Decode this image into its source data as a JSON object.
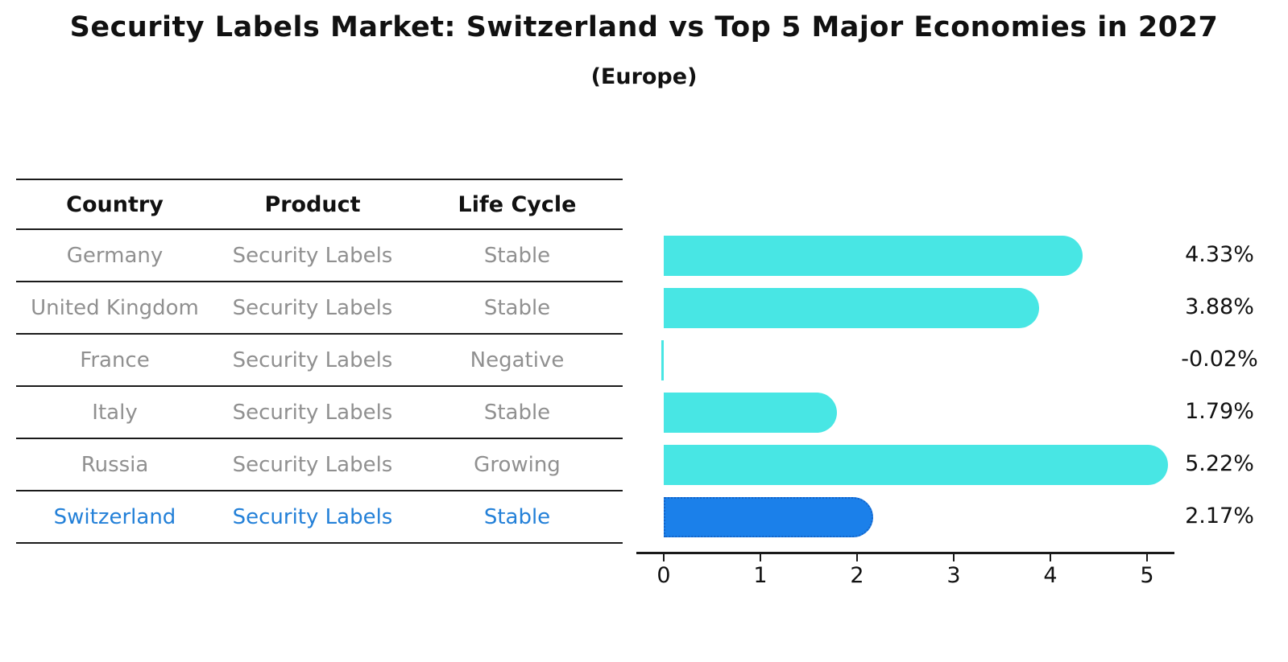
{
  "title": "Security Labels Market: Switzerland vs Top 5 Major Economies in 2027",
  "subtitle": "(Europe)",
  "table": {
    "columns": [
      "Country",
      "Product",
      "Life Cycle"
    ],
    "rows": [
      {
        "country": "Germany",
        "product": "Security Labels",
        "life_cycle": "Stable",
        "highlight": false
      },
      {
        "country": "United Kingdom",
        "product": "Security Labels",
        "life_cycle": "Stable",
        "highlight": false
      },
      {
        "country": "France",
        "product": "Security Labels",
        "life_cycle": "Negative",
        "highlight": false
      },
      {
        "country": "Italy",
        "product": "Security Labels",
        "life_cycle": "Stable",
        "highlight": false
      },
      {
        "country": "Russia",
        "product": "Security Labels",
        "life_cycle": "Growing",
        "highlight": false
      },
      {
        "country": "Switzerland",
        "product": "Security Labels",
        "life_cycle": "Stable",
        "highlight": true
      }
    ]
  },
  "chart_data": {
    "type": "bar",
    "orientation": "horizontal",
    "title": "Security Labels Market: Switzerland vs Top 5 Major Economies in 2027",
    "subtitle": "(Europe)",
    "categories": [
      "Germany",
      "United Kingdom",
      "France",
      "Italy",
      "Russia",
      "Switzerland"
    ],
    "values": [
      4.33,
      3.88,
      -0.02,
      1.79,
      5.22,
      2.17
    ],
    "value_labels": [
      "4.33%",
      "3.88%",
      "-0.02%",
      "1.79%",
      "5.22%",
      "2.17%"
    ],
    "unit": "percent",
    "xlabel": "",
    "ylabel": "",
    "xticks": [
      0,
      1,
      2,
      3,
      4,
      5
    ],
    "xlim": [
      0,
      5.45
    ],
    "grid": false,
    "legend": false,
    "highlight_category": "Switzerland",
    "colors": {
      "bar": "#48e6e4",
      "highlight_bar": "#1b80ea",
      "highlight_border": "#1464c8",
      "highlight_text": "#2380d8",
      "table_text": "#909090",
      "header_text": "#111111",
      "axis": "#1a1a1a"
    }
  }
}
